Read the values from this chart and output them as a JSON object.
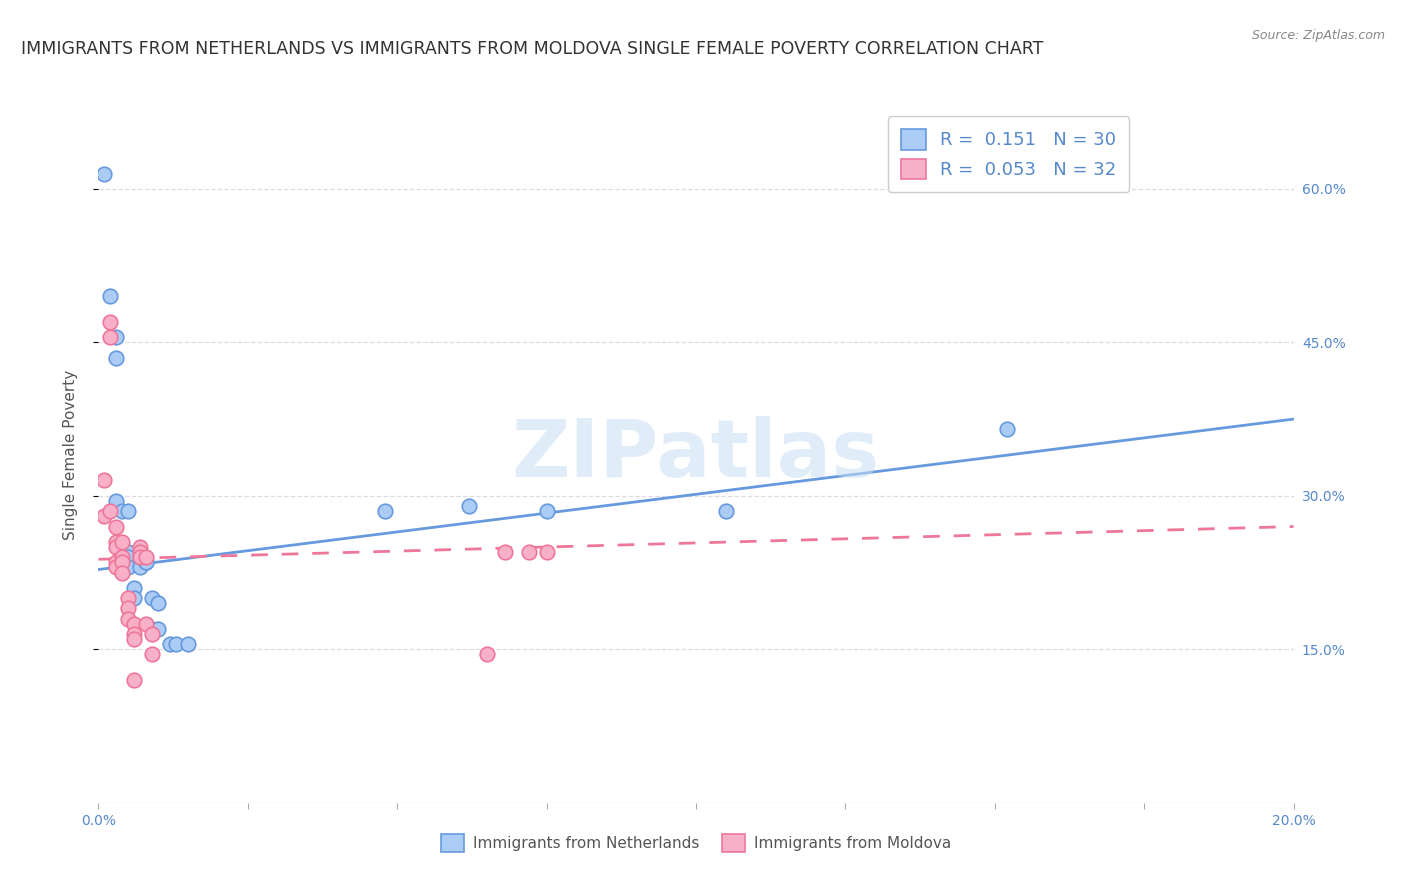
{
  "title": "IMMIGRANTS FROM NETHERLANDS VS IMMIGRANTS FROM MOLDOVA SINGLE FEMALE POVERTY CORRELATION CHART",
  "source": "Source: ZipAtlas.com",
  "ylabel": "Single Female Poverty",
  "legend_labels": [
    "Immigrants from Netherlands",
    "Immigrants from Moldova"
  ],
  "legend_R": [
    "0.151",
    "0.053"
  ],
  "legend_N": [
    "30",
    "32"
  ],
  "xlim": [
    0.0,
    0.2
  ],
  "ylim": [
    0.0,
    0.68
  ],
  "yticks": [
    0.15,
    0.3,
    0.45,
    0.6
  ],
  "ytick_labels": [
    "15.0%",
    "30.0%",
    "45.0%",
    "60.0%"
  ],
  "xticks": [
    0.0,
    0.025,
    0.05,
    0.075,
    0.1,
    0.125,
    0.15,
    0.175,
    0.2
  ],
  "xtick_labels": [
    "0.0%",
    "",
    "",
    "",
    "",
    "",
    "",
    "",
    "20.0%"
  ],
  "color_netherlands": "#aaccf5",
  "color_moldova": "#f8b0c8",
  "line_color_netherlands": "#6699dd",
  "line_color_moldova": "#ee7799",
  "watermark": "ZIPatlas",
  "netherlands_x": [
    0.001,
    0.002,
    0.003,
    0.003,
    0.003,
    0.004,
    0.004,
    0.004,
    0.005,
    0.005,
    0.005,
    0.005,
    0.006,
    0.006,
    0.007,
    0.007,
    0.008,
    0.008,
    0.009,
    0.009,
    0.01,
    0.01,
    0.012,
    0.013,
    0.015,
    0.048,
    0.062,
    0.075,
    0.105,
    0.152
  ],
  "netherlands_y": [
    0.615,
    0.495,
    0.455,
    0.435,
    0.295,
    0.285,
    0.25,
    0.24,
    0.285,
    0.245,
    0.24,
    0.23,
    0.21,
    0.2,
    0.24,
    0.23,
    0.235,
    0.235,
    0.2,
    0.17,
    0.195,
    0.17,
    0.155,
    0.155,
    0.155,
    0.285,
    0.29,
    0.285,
    0.285,
    0.365
  ],
  "moldova_x": [
    0.001,
    0.001,
    0.002,
    0.002,
    0.002,
    0.003,
    0.003,
    0.003,
    0.003,
    0.003,
    0.004,
    0.004,
    0.004,
    0.004,
    0.005,
    0.005,
    0.005,
    0.006,
    0.006,
    0.006,
    0.006,
    0.007,
    0.007,
    0.007,
    0.008,
    0.008,
    0.009,
    0.009,
    0.065,
    0.068,
    0.072,
    0.075
  ],
  "moldova_y": [
    0.315,
    0.28,
    0.47,
    0.455,
    0.285,
    0.27,
    0.255,
    0.25,
    0.235,
    0.23,
    0.255,
    0.24,
    0.235,
    0.225,
    0.2,
    0.19,
    0.18,
    0.175,
    0.165,
    0.16,
    0.12,
    0.25,
    0.245,
    0.24,
    0.24,
    0.175,
    0.165,
    0.145,
    0.145,
    0.245,
    0.245,
    0.245
  ],
  "netherlands_trend_x": [
    0.0,
    0.2
  ],
  "netherlands_trend_y": [
    0.228,
    0.375
  ],
  "moldova_trend_x": [
    0.0,
    0.2
  ],
  "moldova_trend_y": [
    0.238,
    0.27
  ],
  "background_color": "#ffffff",
  "grid_color": "#dddddd",
  "title_fontsize": 12.5,
  "axis_label_fontsize": 11,
  "tick_fontsize": 10,
  "legend_fontsize": 13
}
